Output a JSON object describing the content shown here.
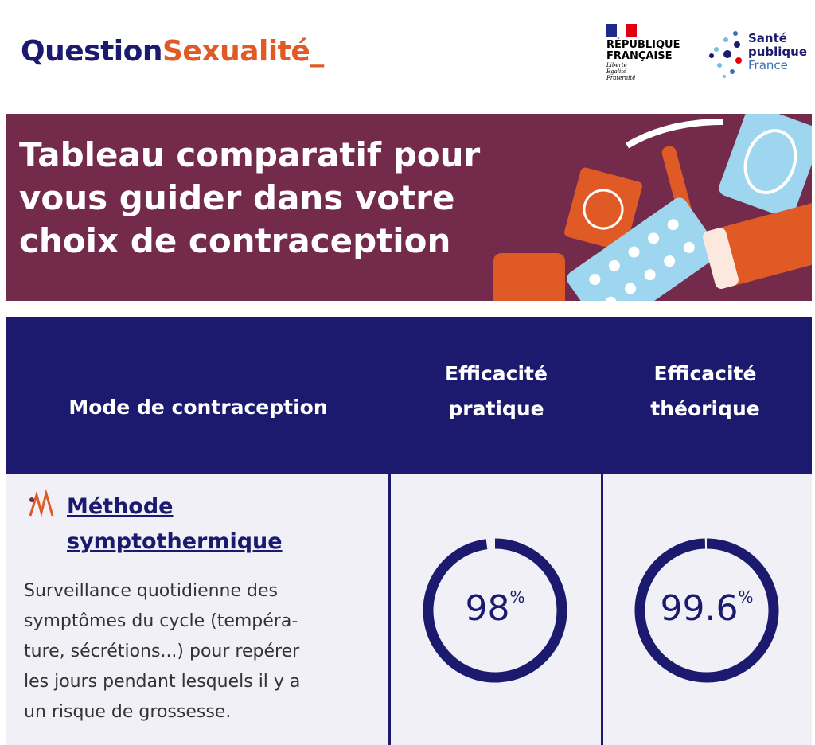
{
  "header": {
    "logo": {
      "part1": "Question",
      "part2": "Sexualité_"
    },
    "republique": {
      "line1": "RÉPUBLIQUE",
      "line2": "FRANÇAISE",
      "motto": [
        "Liberté",
        "Égalité",
        "Fraternité"
      ]
    },
    "sante_publique": [
      "Santé",
      "publique",
      "France"
    ]
  },
  "banner": {
    "title_lines": [
      "Tableau comparatif pour",
      "vous guider dans votre",
      "choix de contraception"
    ]
  },
  "table": {
    "columns": [
      "Mode de contraception",
      "Efficacité pratique",
      "Efficacité théorique"
    ],
    "rows": [
      {
        "method": [
          "Méthode",
          "symptothermique"
        ],
        "description": [
          "Surveillance quotidienne des",
          "symptômes du cycle (tempéra-",
          "ture, sécrétions...) pour repérer",
          "les jours pendant lesquels il y a",
          "un risque de grossesse."
        ],
        "efficacite_pratique": {
          "value": 98,
          "unit": "%"
        },
        "efficacite_theorique": {
          "value": 99.6,
          "unit": "%"
        }
      }
    ]
  }
}
